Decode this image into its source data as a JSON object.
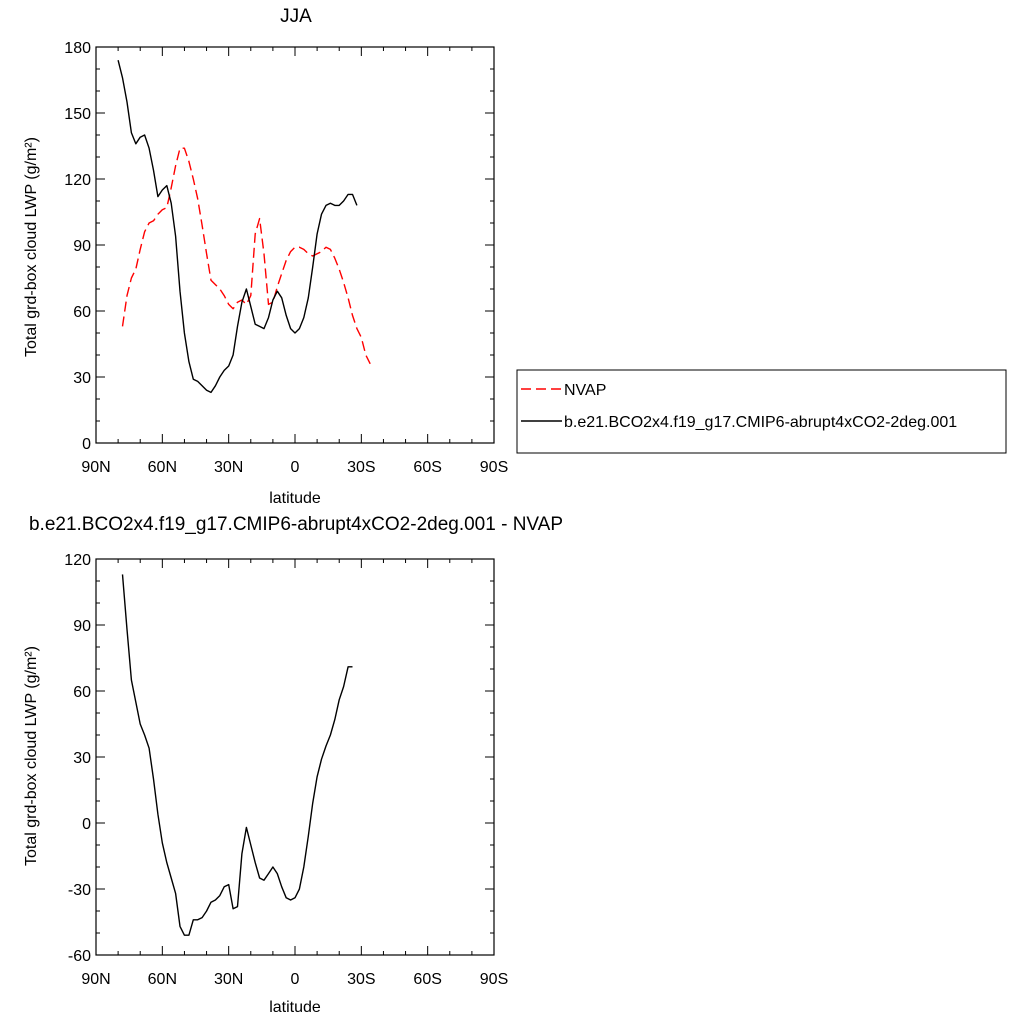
{
  "chart_data": [
    {
      "type": "line",
      "title": "JJA",
      "xlabel": "latitude",
      "ylabel": "Total grd-box cloud LWP (g/m²)",
      "xlim": [
        90,
        -90
      ],
      "ylim": [
        0,
        180
      ],
      "x_ticks": [
        90,
        60,
        30,
        0,
        -30,
        -60,
        -90
      ],
      "x_tick_labels": [
        "90N",
        "60N",
        "30N",
        "0",
        "30S",
        "60S",
        "90S"
      ],
      "y_ticks": [
        0,
        30,
        60,
        90,
        120,
        150,
        180
      ],
      "y_tick_labels": [
        "0",
        "30",
        "60",
        "90",
        "120",
        "150",
        "180"
      ],
      "legend_position": "right",
      "series": [
        {
          "name": "NVAP",
          "color": "#ff0000",
          "dash": "dashed",
          "points": [
            [
              78,
              53
            ],
            [
              76,
              67
            ],
            [
              74,
              75
            ],
            [
              72,
              79
            ],
            [
              70,
              88
            ],
            [
              68,
              96
            ],
            [
              66,
              100
            ],
            [
              64,
              101
            ],
            [
              62,
              104
            ],
            [
              60,
              106
            ],
            [
              58,
              107
            ],
            [
              56,
              116
            ],
            [
              54,
              126
            ],
            [
              52,
              134
            ],
            [
              50,
              134
            ],
            [
              48,
              128
            ],
            [
              46,
              120
            ],
            [
              44,
              111
            ],
            [
              42,
              99
            ],
            [
              40,
              86
            ],
            [
              38,
              74
            ],
            [
              36,
              72
            ],
            [
              34,
              70
            ],
            [
              32,
              67
            ],
            [
              30,
              63
            ],
            [
              28,
              61
            ],
            [
              26,
              64
            ],
            [
              24,
              65
            ],
            [
              22,
              63
            ],
            [
              20,
              67
            ],
            [
              18,
              95
            ],
            [
              16,
              102
            ],
            [
              14,
              86
            ],
            [
              12,
              63
            ],
            [
              10,
              64
            ],
            [
              8,
              71
            ],
            [
              6,
              77
            ],
            [
              4,
              83
            ],
            [
              2,
              87
            ],
            [
              0,
              89
            ],
            [
              -2,
              89
            ],
            [
              -4,
              88
            ],
            [
              -6,
              86
            ],
            [
              -8,
              85
            ],
            [
              -10,
              86
            ],
            [
              -12,
              87
            ],
            [
              -14,
              89
            ],
            [
              -16,
              88
            ],
            [
              -18,
              84
            ],
            [
              -20,
              79
            ],
            [
              -22,
              73
            ],
            [
              -24,
              66
            ],
            [
              -26,
              58
            ],
            [
              -28,
              52
            ],
            [
              -30,
              48
            ],
            [
              -32,
              40
            ],
            [
              -34,
              36
            ]
          ]
        },
        {
          "name": "b.e21.BCO2x4.f19_g17.CMIP6-abrupt4xCO2-2deg.001",
          "color": "#000000",
          "dash": "solid",
          "points": [
            [
              80,
              174
            ],
            [
              78,
              166
            ],
            [
              76,
              155
            ],
            [
              74,
              141
            ],
            [
              72,
              136
            ],
            [
              70,
              139
            ],
            [
              68,
              140
            ],
            [
              66,
              134
            ],
            [
              64,
              124
            ],
            [
              62,
              112
            ],
            [
              60,
              115
            ],
            [
              58,
              117
            ],
            [
              56,
              109
            ],
            [
              54,
              94
            ],
            [
              52,
              69
            ],
            [
              50,
              50
            ],
            [
              48,
              37
            ],
            [
              46,
              29
            ],
            [
              44,
              28
            ],
            [
              42,
              26
            ],
            [
              40,
              24
            ],
            [
              38,
              23
            ],
            [
              36,
              26
            ],
            [
              34,
              30
            ],
            [
              32,
              33
            ],
            [
              30,
              35
            ],
            [
              28,
              40
            ],
            [
              26,
              53
            ],
            [
              24,
              64
            ],
            [
              22,
              70
            ],
            [
              20,
              62
            ],
            [
              18,
              54
            ],
            [
              16,
              53
            ],
            [
              14,
              52
            ],
            [
              12,
              57
            ],
            [
              10,
              65
            ],
            [
              8,
              69
            ],
            [
              6,
              66
            ],
            [
              4,
              58
            ],
            [
              2,
              52
            ],
            [
              0,
              50
            ],
            [
              -2,
              52
            ],
            [
              -4,
              57
            ],
            [
              -6,
              66
            ],
            [
              -8,
              80
            ],
            [
              -10,
              95
            ],
            [
              -12,
              104
            ],
            [
              -14,
              108
            ],
            [
              -16,
              109
            ],
            [
              -18,
              108
            ],
            [
              -20,
              108
            ],
            [
              -22,
              110
            ],
            [
              -24,
              113
            ],
            [
              -26,
              113
            ],
            [
              -28,
              108
            ]
          ]
        }
      ]
    },
    {
      "type": "line",
      "title": "b.e21.BCO2x4.f19_g17.CMIP6-abrupt4xCO2-2deg.001 - NVAP",
      "xlabel": "latitude",
      "ylabel": "Total grd-box cloud LWP (g/m²)",
      "xlim": [
        90,
        -90
      ],
      "ylim": [
        -60,
        120
      ],
      "x_ticks": [
        90,
        60,
        30,
        0,
        -30,
        -60,
        -90
      ],
      "x_tick_labels": [
        "90N",
        "60N",
        "30N",
        "0",
        "30S",
        "60S",
        "90S"
      ],
      "y_ticks": [
        -60,
        -30,
        0,
        30,
        60,
        90,
        120
      ],
      "y_tick_labels": [
        "-60",
        "-30",
        "0",
        "30",
        "60",
        "90",
        "120"
      ],
      "series": [
        {
          "name": "",
          "color": "#000000",
          "dash": "solid",
          "points": [
            [
              78,
              113
            ],
            [
              76,
              88
            ],
            [
              74,
              65
            ],
            [
              72,
              55
            ],
            [
              70,
              45
            ],
            [
              68,
              40
            ],
            [
              66,
              34
            ],
            [
              64,
              20
            ],
            [
              62,
              4
            ],
            [
              60,
              -9
            ],
            [
              58,
              -18
            ],
            [
              56,
              -25
            ],
            [
              54,
              -32
            ],
            [
              52,
              -47
            ],
            [
              50,
              -51
            ],
            [
              48,
              -51
            ],
            [
              46,
              -44
            ],
            [
              44,
              -44
            ],
            [
              42,
              -43
            ],
            [
              40,
              -40
            ],
            [
              38,
              -36
            ],
            [
              36,
              -35
            ],
            [
              34,
              -33
            ],
            [
              32,
              -29
            ],
            [
              30,
              -28
            ],
            [
              28,
              -39
            ],
            [
              26,
              -38
            ],
            [
              24,
              -14
            ],
            [
              22,
              -2
            ],
            [
              20,
              -10
            ],
            [
              18,
              -18
            ],
            [
              16,
              -25
            ],
            [
              14,
              -26
            ],
            [
              12,
              -23
            ],
            [
              10,
              -20
            ],
            [
              8,
              -23
            ],
            [
              6,
              -29
            ],
            [
              4,
              -34
            ],
            [
              2,
              -35
            ],
            [
              0,
              -34
            ],
            [
              -2,
              -30
            ],
            [
              -4,
              -20
            ],
            [
              -6,
              -6
            ],
            [
              -8,
              9
            ],
            [
              -10,
              21
            ],
            [
              -12,
              29
            ],
            [
              -14,
              35
            ],
            [
              -16,
              40
            ],
            [
              -18,
              47
            ],
            [
              -20,
              56
            ],
            [
              -22,
              62
            ],
            [
              -24,
              71
            ],
            [
              -26,
              71
            ]
          ]
        }
      ]
    }
  ]
}
